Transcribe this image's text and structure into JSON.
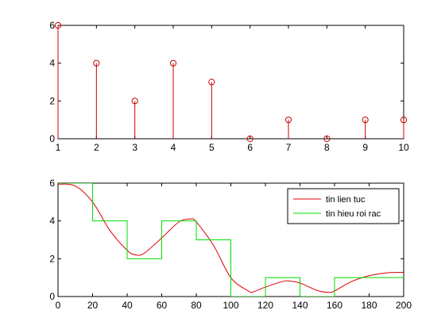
{
  "chart_data": [
    {
      "type": "stem",
      "title": "",
      "xlabel": "",
      "ylabel": "",
      "xlim": [
        1,
        10
      ],
      "ylim": [
        0,
        6
      ],
      "xticks": [
        1,
        2,
        3,
        4,
        5,
        6,
        7,
        8,
        9,
        10
      ],
      "yticks": [
        0,
        2,
        4,
        6
      ],
      "color": "#cc0000",
      "marker": "circle",
      "x": [
        1,
        2,
        3,
        4,
        5,
        6,
        7,
        8,
        9,
        10
      ],
      "values": [
        6,
        4,
        2,
        4,
        3,
        0,
        1,
        0,
        1,
        1
      ]
    },
    {
      "type": "line",
      "title": "",
      "xlabel": "",
      "ylabel": "",
      "xlim": [
        0,
        200
      ],
      "ylim": [
        0,
        6
      ],
      "xticks": [
        0,
        20,
        40,
        60,
        80,
        100,
        120,
        140,
        160,
        180,
        200
      ],
      "yticks": [
        0,
        2,
        4,
        6
      ],
      "legend_position": "top-right",
      "series": [
        {
          "name": "tin lien tuc",
          "color": "#dd0000",
          "x": [
            0,
            10,
            20,
            30,
            40,
            45,
            50,
            60,
            70,
            77,
            80,
            90,
            100,
            110,
            113,
            120,
            130,
            134,
            140,
            150,
            157,
            160,
            170,
            180,
            190,
            200
          ],
          "values": [
            5.95,
            5.85,
            5.0,
            3.5,
            2.45,
            2.2,
            2.3,
            3.1,
            3.95,
            4.1,
            3.95,
            2.7,
            1.0,
            0.3,
            0.25,
            0.5,
            0.8,
            0.82,
            0.72,
            0.32,
            0.22,
            0.3,
            0.8,
            1.1,
            1.25,
            1.28
          ]
        },
        {
          "name": "tin hieu roi rac",
          "color": "#00dd00",
          "step": "post",
          "x": [
            0,
            20,
            40,
            60,
            80,
            100,
            120,
            140,
            160,
            180,
            200
          ],
          "values": [
            6,
            4,
            2,
            4,
            3,
            0,
            1,
            0,
            1,
            1,
            1
          ]
        }
      ]
    }
  ]
}
